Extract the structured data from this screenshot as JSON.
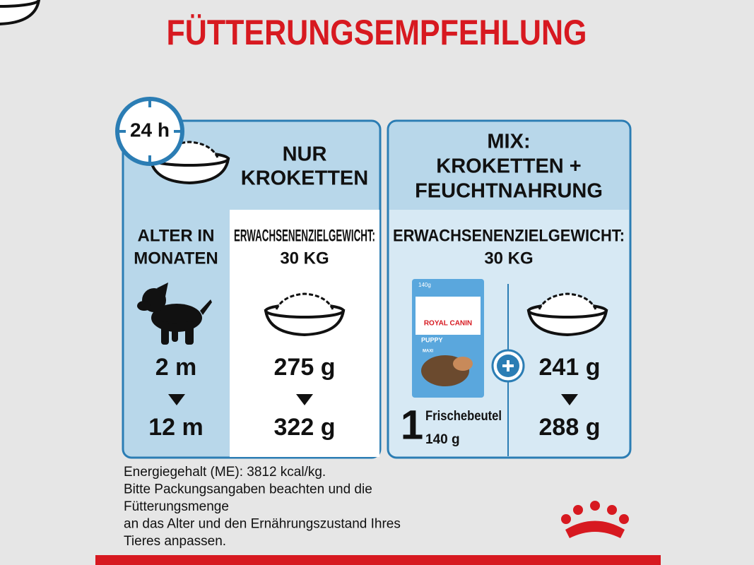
{
  "title": "FÜTTERUNGSEMPFEHLUNG",
  "clock": "24 h",
  "left_panel": {
    "heading": [
      "NUR",
      "KROKETTEN"
    ],
    "age_header": [
      "ALTER IN",
      "MONATEN"
    ],
    "weight_header": [
      "ERWACHSENENZIELGEWICHT:",
      "30 KG"
    ],
    "ages": [
      "2 m",
      "12 m"
    ],
    "amounts": [
      "275 g",
      "322 g"
    ]
  },
  "right_panel": {
    "heading": [
      "MIX:",
      "KROKETTEN +",
      "FEUCHTNAHRUNG"
    ],
    "weight_header": [
      "ERWACHSENENZIELGEWICHT:",
      "30 KG"
    ],
    "pouch": {
      "weight": "140g",
      "brand": "ROYAL CANIN",
      "variant": "PUPPY",
      "size": "MAXI"
    },
    "pouch_count": "1",
    "pouch_label": [
      "Frischebeutel",
      "140 g"
    ],
    "amounts": [
      "241 g",
      "288 g"
    ]
  },
  "footer": [
    "Energiegehalt (ME): 3812 kcal/kg.",
    "Bitte Packungsangaben beachten und die",
    "Fütterungsmenge",
    "an das Alter und den Ernährungszustand Ihres",
    "Tieres anpassen."
  ]
}
